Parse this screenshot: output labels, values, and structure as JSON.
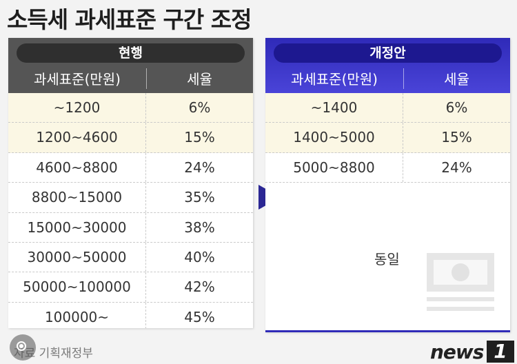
{
  "title": "소득세 과세표준 구간 조정",
  "current": {
    "label": "현행",
    "col_headers": [
      "과세표준(만원)",
      "세율"
    ],
    "rows": [
      {
        "bracket": "~1200",
        "rate": "6%"
      },
      {
        "bracket": "1200~4600",
        "rate": "15%"
      },
      {
        "bracket": "4600~8800",
        "rate": "24%"
      },
      {
        "bracket": "8800~15000",
        "rate": "35%"
      },
      {
        "bracket": "15000~30000",
        "rate": "38%"
      },
      {
        "bracket": "30000~50000",
        "rate": "40%"
      },
      {
        "bracket": "50000~100000",
        "rate": "42%"
      },
      {
        "bracket": "100000~",
        "rate": "45%"
      }
    ]
  },
  "revised": {
    "label": "개정안",
    "col_headers": [
      "과세표준(만원)",
      "세율"
    ],
    "rows": [
      {
        "bracket": "~1400",
        "rate": "6%"
      },
      {
        "bracket": "1400~5000",
        "rate": "15%"
      },
      {
        "bracket": "5000~8800",
        "rate": "24%"
      }
    ],
    "same_text": "동일"
  },
  "source": "자료  기획재정부",
  "logo": {
    "text": "news",
    "mark": "1"
  },
  "colors": {
    "current_header": "#555555",
    "revised_header": "#2f2ab8",
    "row_tint": "#fbf7e4",
    "arrow": "#2b2794"
  },
  "icons": {
    "arrow": "triangle-right-icon",
    "bill": "banknote-icon",
    "lens": "lens-search-icon"
  }
}
